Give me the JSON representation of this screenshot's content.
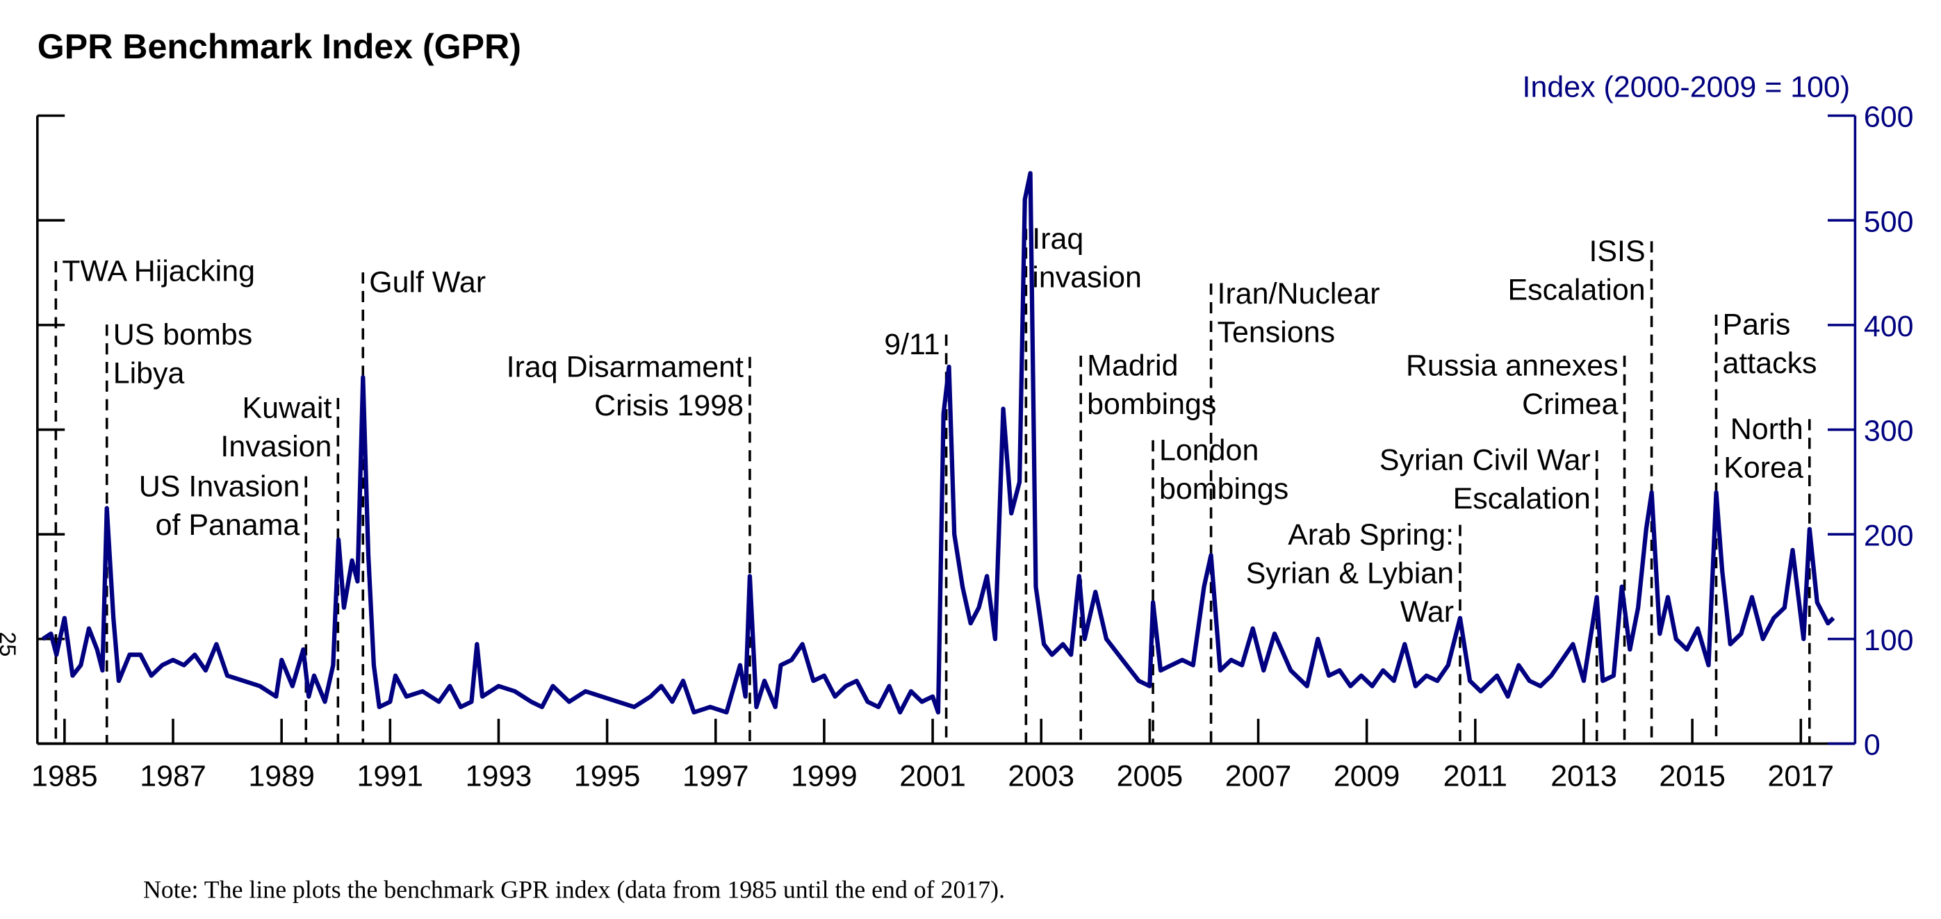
{
  "chart_data": {
    "type": "line",
    "title": "GPR Benchmark Index (GPR)",
    "ylabel": "Index (2000-2009 = 100)",
    "note": "Note: The line plots the benchmark GPR index (data from 1985 until the end of 2017).",
    "margin_text": "25",
    "xlim": [
      1984.5,
      2018.0
    ],
    "xticks": [
      1985,
      1987,
      1989,
      1991,
      1993,
      1995,
      1997,
      1999,
      2001,
      2003,
      2005,
      2007,
      2009,
      2011,
      2013,
      2015,
      2017
    ],
    "ylim": [
      0,
      600
    ],
    "yticks": [
      0,
      100,
      200,
      300,
      400,
      500,
      600
    ],
    "x": [
      1984.6,
      1984.75,
      1984.85,
      1985.0,
      1985.15,
      1985.3,
      1985.45,
      1985.6,
      1985.7,
      1985.78,
      1985.9,
      1986.0,
      1986.2,
      1986.4,
      1986.6,
      1986.8,
      1987.0,
      1987.2,
      1987.4,
      1987.6,
      1987.8,
      1988.0,
      1988.3,
      1988.6,
      1988.9,
      1989.0,
      1989.2,
      1989.4,
      1989.5,
      1989.6,
      1989.8,
      1989.95,
      1990.05,
      1990.15,
      1990.3,
      1990.4,
      1990.5,
      1990.6,
      1990.7,
      1990.8,
      1991.0,
      1991.1,
      1991.3,
      1991.6,
      1991.9,
      1992.1,
      1992.3,
      1992.5,
      1992.6,
      1992.7,
      1993.0,
      1993.3,
      1993.6,
      1993.8,
      1994.0,
      1994.3,
      1994.6,
      1994.9,
      1995.2,
      1995.5,
      1995.8,
      1996.0,
      1996.2,
      1996.4,
      1996.6,
      1996.9,
      1997.2,
      1997.45,
      1997.55,
      1997.63,
      1997.75,
      1997.9,
      1998.1,
      1998.2,
      1998.4,
      1998.6,
      1998.8,
      1999.0,
      1999.2,
      1999.4,
      1999.6,
      1999.8,
      2000.0,
      2000.2,
      2000.4,
      2000.6,
      2000.8,
      2001.0,
      2001.1,
      2001.2,
      2001.3,
      2001.4,
      2001.55,
      2001.7,
      2001.85,
      2002.0,
      2002.15,
      2002.3,
      2002.45,
      2002.6,
      2002.7,
      2002.8,
      2002.9,
      2003.05,
      2003.2,
      2003.4,
      2003.55,
      2003.7,
      2003.8,
      2004.0,
      2004.2,
      2004.5,
      2004.8,
      2005.0,
      2005.06,
      2005.2,
      2005.4,
      2005.6,
      2005.8,
      2006.0,
      2006.13,
      2006.3,
      2006.5,
      2006.7,
      2006.9,
      2007.1,
      2007.3,
      2007.6,
      2007.9,
      2008.1,
      2008.3,
      2008.5,
      2008.7,
      2008.9,
      2009.1,
      2009.3,
      2009.5,
      2009.7,
      2009.9,
      2010.1,
      2010.3,
      2010.5,
      2010.72,
      2010.9,
      2011.1,
      2011.4,
      2011.6,
      2011.8,
      2012.0,
      2012.2,
      2012.4,
      2012.6,
      2012.8,
      2013.0,
      2013.24,
      2013.35,
      2013.55,
      2013.7,
      2013.85,
      2014.0,
      2014.15,
      2014.25,
      2014.4,
      2014.55,
      2014.7,
      2014.9,
      2015.1,
      2015.3,
      2015.44,
      2015.55,
      2015.7,
      2015.9,
      2016.1,
      2016.3,
      2016.5,
      2016.7,
      2016.85,
      2017.05,
      2017.16,
      2017.3,
      2017.5,
      2017.6
    ],
    "series": [
      {
        "color": "#000080",
        "values": [
          100,
          105,
          85,
          120,
          65,
          75,
          110,
          90,
          70,
          225,
          120,
          60,
          85,
          85,
          65,
          75,
          80,
          75,
          85,
          70,
          95,
          65,
          60,
          55,
          45,
          80,
          55,
          90,
          45,
          65,
          40,
          75,
          195,
          130,
          175,
          155,
          350,
          180,
          75,
          35,
          40,
          65,
          45,
          50,
          40,
          55,
          35,
          40,
          95,
          45,
          55,
          50,
          40,
          35,
          55,
          40,
          50,
          45,
          40,
          35,
          45,
          55,
          40,
          60,
          30,
          35,
          30,
          75,
          45,
          160,
          35,
          60,
          35,
          75,
          80,
          95,
          60,
          65,
          45,
          55,
          60,
          40,
          35,
          55,
          30,
          50,
          40,
          45,
          30,
          315,
          360,
          200,
          150,
          115,
          130,
          160,
          100,
          320,
          220,
          250,
          520,
          545,
          150,
          95,
          85,
          95,
          85,
          160,
          100,
          145,
          100,
          80,
          60,
          55,
          135,
          70,
          75,
          80,
          75,
          150,
          180,
          70,
          80,
          75,
          110,
          70,
          105,
          70,
          55,
          100,
          65,
          70,
          55,
          65,
          55,
          70,
          60,
          95,
          55,
          65,
          60,
          75,
          120,
          60,
          50,
          65,
          45,
          75,
          60,
          55,
          65,
          80,
          95,
          60,
          140,
          60,
          65,
          150,
          90,
          130,
          205,
          240,
          105,
          140,
          100,
          90,
          110,
          75,
          240,
          165,
          95,
          105,
          140,
          100,
          120,
          130,
          185,
          100,
          205,
          135,
          115,
          120
        ]
      }
    ],
    "annotations": [
      {
        "x": 1984.84,
        "text": [
          "TWA Hijacking"
        ]
      },
      {
        "x": 1985.78,
        "text": [
          "US bombs",
          "Libya"
        ]
      },
      {
        "x": 1989.45,
        "text": [
          "US Invasion",
          "of Panama"
        ]
      },
      {
        "x": 1990.04,
        "text": [
          "Kuwait",
          "Invasion"
        ]
      },
      {
        "x": 1990.5,
        "text": [
          "Gulf War"
        ]
      },
      {
        "x": 1997.63,
        "text": [
          "Iraq Disarmament",
          "Crisis 1998"
        ]
      },
      {
        "x": 2001.25,
        "text": [
          "9/11"
        ]
      },
      {
        "x": 2002.72,
        "text": [
          "Iraq",
          "invasion"
        ]
      },
      {
        "x": 2003.73,
        "text": [
          "Madrid",
          "bombings"
        ]
      },
      {
        "x": 2005.06,
        "text": [
          "London",
          "bombings"
        ]
      },
      {
        "x": 2006.13,
        "text": [
          "Iran/Nuclear",
          "Tensions"
        ]
      },
      {
        "x": 2010.72,
        "text": [
          "Arab Spring:",
          "Syrian & Lybian",
          "War"
        ]
      },
      {
        "x": 2013.24,
        "text": [
          "Syrian Civil War",
          "Escalation"
        ]
      },
      {
        "x": 2013.75,
        "text": [
          "Russia annexes",
          "Crimea"
        ]
      },
      {
        "x": 2014.25,
        "text": [
          "ISIS",
          "Escalation"
        ]
      },
      {
        "x": 2015.44,
        "text": [
          "Paris",
          "attacks"
        ]
      },
      {
        "x": 2017.16,
        "text": [
          "North",
          "Korea"
        ]
      }
    ]
  }
}
